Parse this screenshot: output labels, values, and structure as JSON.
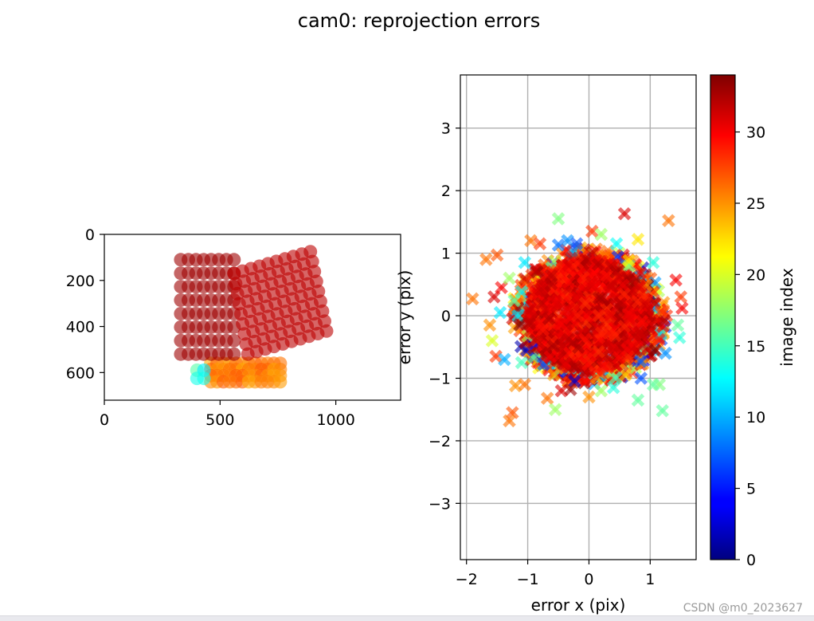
{
  "chart_data": [
    {
      "type": "scatter",
      "panel": "reprojected-points",
      "title": "cam0: reprojection errors",
      "xlabel": "",
      "ylabel": "",
      "xlim": [
        0,
        1280
      ],
      "ylim": [
        720,
        0
      ],
      "y_inverted": true,
      "xticks": [
        "0",
        "500",
        "1000"
      ],
      "xtick_values": [
        0,
        500,
        1000
      ],
      "yticks": [
        "0",
        "200",
        "400",
        "600"
      ],
      "ytick_values": [
        0,
        200,
        400,
        600
      ],
      "grid": false,
      "point_groups": [
        {
          "image_index_range": [
            24,
            27
          ],
          "note_color": "yellow",
          "x_range": [
            460,
            760
          ],
          "y_range": [
            560,
            640
          ],
          "cols": 12,
          "rows": 4
        },
        {
          "image_index_range": [
            12,
            16
          ],
          "note_color": "cyan",
          "x_range": [
            400,
            430
          ],
          "y_range": [
            590,
            625
          ],
          "cols": 2,
          "rows": 2
        },
        {
          "image_index": 33,
          "note_color": "dark-red",
          "x_range": [
            330,
            560
          ],
          "y_range": [
            110,
            520
          ],
          "cols": 8,
          "rows": 8
        },
        {
          "image_index": 32,
          "note_color": "red",
          "corners": [
            [
              560,
              170
            ],
            [
              890,
              75
            ],
            [
              960,
              420
            ],
            [
              620,
              520
            ]
          ],
          "cols": 10,
          "rows": 9
        }
      ]
    },
    {
      "type": "scatter",
      "panel": "error-scatter",
      "xlabel": "error x (pix)",
      "ylabel": "error y (pix)",
      "xlim": [
        -2.1,
        1.75
      ],
      "ylim": [
        -3.9,
        3.85
      ],
      "xticks": [
        "−2",
        "−1",
        "0",
        "1"
      ],
      "xtick_values": [
        -2,
        -1,
        0,
        1
      ],
      "yticks": [
        "−3",
        "−2",
        "−1",
        "0",
        "1",
        "2",
        "3"
      ],
      "ytick_values": [
        -3,
        -2,
        -1,
        0,
        1,
        2,
        3
      ],
      "grid": true,
      "marker": "x",
      "core_cloud": {
        "center": [
          0,
          0
        ],
        "radius_x": 1.1,
        "radius_y": 1.0,
        "image_index_range": [
          28,
          33
        ]
      },
      "outliers": [
        {
          "x": -1.9,
          "y": 0.27,
          "c": 26
        },
        {
          "x": -1.68,
          "y": 0.9,
          "c": 26
        },
        {
          "x": -1.5,
          "y": 0.97,
          "c": 27
        },
        {
          "x": -1.55,
          "y": 0.3,
          "c": 31
        },
        {
          "x": -1.43,
          "y": 0.45,
          "c": 30
        },
        {
          "x": -1.52,
          "y": -0.65,
          "c": 28
        },
        {
          "x": -1.38,
          "y": -0.7,
          "c": 10
        },
        {
          "x": -1.3,
          "y": 0.6,
          "c": 18
        },
        {
          "x": -1.05,
          "y": 0.85,
          "c": 12
        },
        {
          "x": -0.95,
          "y": 1.2,
          "c": 26
        },
        {
          "x": -0.8,
          "y": 1.15,
          "c": 28
        },
        {
          "x": -0.5,
          "y": 1.55,
          "c": 17
        },
        {
          "x": -0.5,
          "y": 1.13,
          "c": 8
        },
        {
          "x": -0.35,
          "y": 1.2,
          "c": 9
        },
        {
          "x": -0.2,
          "y": 1.15,
          "c": 7
        },
        {
          "x": 0.05,
          "y": 1.35,
          "c": 28
        },
        {
          "x": 0.2,
          "y": 1.3,
          "c": 18
        },
        {
          "x": 0.58,
          "y": 1.63,
          "c": 31
        },
        {
          "x": 0.8,
          "y": 1.22,
          "c": 22
        },
        {
          "x": 1.3,
          "y": 1.52,
          "c": 26
        },
        {
          "x": 0.45,
          "y": 1.15,
          "c": 13
        },
        {
          "x": 1.05,
          "y": 0.85,
          "c": 14
        },
        {
          "x": 1.42,
          "y": 0.57,
          "c": 30
        },
        {
          "x": 1.5,
          "y": 0.3,
          "c": 28
        },
        {
          "x": 1.52,
          "y": 0.12,
          "c": 30
        },
        {
          "x": 1.45,
          "y": -0.15,
          "c": 16
        },
        {
          "x": 1.48,
          "y": -0.35,
          "c": 14
        },
        {
          "x": 1.25,
          "y": -0.6,
          "c": 9
        },
        {
          "x": 1.15,
          "y": -1.1,
          "c": 17
        },
        {
          "x": 1.05,
          "y": -1.1,
          "c": 16
        },
        {
          "x": 0.85,
          "y": -1.0,
          "c": 7
        },
        {
          "x": 0.8,
          "y": -1.35,
          "c": 16
        },
        {
          "x": 1.2,
          "y": -1.52,
          "c": 16
        },
        {
          "x": 0.4,
          "y": -1.15,
          "c": 14
        },
        {
          "x": 0.2,
          "y": -1.2,
          "c": 18
        },
        {
          "x": 0.0,
          "y": -1.3,
          "c": 25
        },
        {
          "x": -0.3,
          "y": -1.18,
          "c": 33
        },
        {
          "x": -0.45,
          "y": -1.2,
          "c": 31
        },
        {
          "x": -0.68,
          "y": -1.32,
          "c": 26
        },
        {
          "x": -0.55,
          "y": -1.5,
          "c": 18
        },
        {
          "x": -1.05,
          "y": -1.1,
          "c": 26
        },
        {
          "x": -1.2,
          "y": -1.12,
          "c": 25
        },
        {
          "x": -1.25,
          "y": -1.55,
          "c": 27
        },
        {
          "x": -1.3,
          "y": -1.68,
          "c": 26
        },
        {
          "x": -1.1,
          "y": -0.75,
          "c": 15
        },
        {
          "x": -1.62,
          "y": -0.15,
          "c": 25
        },
        {
          "x": -1.58,
          "y": -0.4,
          "c": 20
        },
        {
          "x": -1.45,
          "y": 0.05,
          "c": 12
        }
      ]
    },
    {
      "type": "colorbar",
      "label": "image index",
      "colormap": "jet",
      "range": [
        0,
        34
      ],
      "ticks": [
        "0",
        "5",
        "10",
        "15",
        "20",
        "25",
        "30"
      ],
      "tick_values": [
        0,
        5,
        10,
        15,
        20,
        25,
        30
      ]
    }
  ],
  "watermark": "CSDN @m0_2023627"
}
